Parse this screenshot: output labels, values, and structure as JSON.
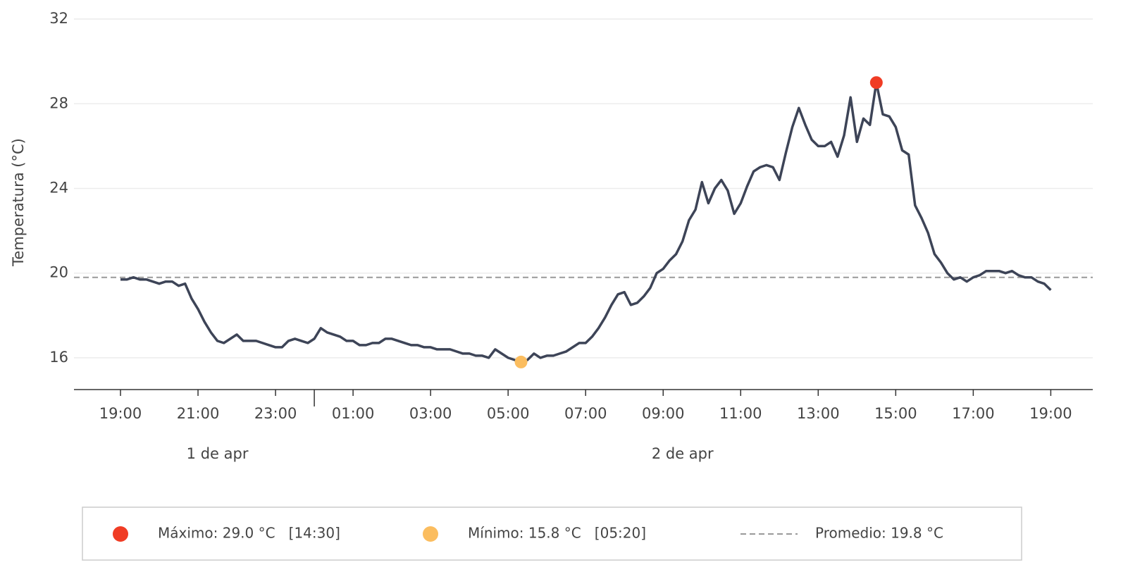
{
  "chart_data": {
    "type": "line",
    "y_label": "Temperatura (°C)",
    "x": [
      1140,
      1150,
      1160,
      1170,
      1180,
      1190,
      1200,
      1210,
      1220,
      1230,
      1240,
      1250,
      1260,
      1270,
      1280,
      1290,
      1300,
      1310,
      1320,
      1330,
      1340,
      1350,
      1360,
      1370,
      1380,
      1390,
      1400,
      1410,
      1420,
      1430,
      1440,
      1450,
      1460,
      1470,
      1480,
      1490,
      1500,
      1510,
      1520,
      1530,
      1540,
      1550,
      1560,
      1570,
      1580,
      1590,
      1600,
      1610,
      1620,
      1630,
      1640,
      1650,
      1660,
      1670,
      1680,
      1690,
      1700,
      1710,
      1720,
      1730,
      1740,
      1750,
      1760,
      1770,
      1780,
      1790,
      1800,
      1810,
      1820,
      1830,
      1840,
      1850,
      1860,
      1870,
      1880,
      1890,
      1900,
      1910,
      1920,
      1930,
      1940,
      1950,
      1960,
      1970,
      1980,
      1990,
      2000,
      2010,
      2020,
      2030,
      2040,
      2050,
      2060,
      2070,
      2080,
      2090,
      2100,
      2110,
      2120,
      2130,
      2140,
      2150,
      2160,
      2170,
      2180,
      2190,
      2200,
      2210,
      2220,
      2230,
      2240,
      2250,
      2260,
      2270,
      2280,
      2290,
      2300,
      2310,
      2320,
      2330,
      2340,
      2350,
      2360,
      2370,
      2380,
      2390,
      2400,
      2410,
      2420,
      2430,
      2440,
      2450,
      2460,
      2470,
      2480,
      2490,
      2500,
      2510,
      2520,
      2530,
      2540,
      2550,
      2560,
      2570,
      2580
    ],
    "series": [
      {
        "color": "#3d4457",
        "values": [
          19.7,
          19.7,
          19.8,
          19.7,
          19.7,
          19.6,
          19.5,
          19.6,
          19.6,
          19.4,
          19.5,
          18.8,
          18.3,
          17.7,
          17.2,
          16.8,
          16.7,
          16.9,
          17.1,
          16.8,
          16.8,
          16.8,
          16.7,
          16.6,
          16.5,
          16.5,
          16.8,
          16.9,
          16.8,
          16.7,
          16.9,
          17.4,
          17.2,
          17.1,
          17.0,
          16.8,
          16.8,
          16.6,
          16.6,
          16.7,
          16.7,
          16.9,
          16.9,
          16.8,
          16.7,
          16.6,
          16.6,
          16.5,
          16.5,
          16.4,
          16.4,
          16.4,
          16.3,
          16.2,
          16.2,
          16.1,
          16.1,
          16.0,
          16.4,
          16.2,
          16.0,
          15.9,
          15.8,
          15.9,
          16.2,
          16.0,
          16.1,
          16.1,
          16.2,
          16.3,
          16.5,
          16.7,
          16.7,
          17.0,
          17.4,
          17.9,
          18.5,
          19.0,
          19.1,
          18.5,
          18.6,
          18.9,
          19.3,
          20.0,
          20.2,
          20.6,
          20.9,
          21.5,
          22.5,
          23.0,
          24.3,
          23.3,
          24.0,
          24.4,
          23.9,
          22.8,
          23.3,
          24.1,
          24.8,
          25.0,
          25.1,
          25.0,
          24.4,
          25.7,
          26.9,
          27.8,
          27.0,
          26.3,
          26.0,
          26.0,
          26.2,
          25.5,
          26.5,
          28.3,
          26.2,
          27.3,
          27.0,
          29.0,
          27.5,
          27.4,
          26.9,
          25.8,
          25.6,
          23.2,
          22.6,
          21.9,
          20.9,
          20.5,
          20.0,
          19.7,
          19.8,
          19.6,
          19.8,
          19.9,
          20.1,
          20.1,
          20.1,
          20.0,
          20.1,
          19.9,
          19.8,
          19.8,
          19.6,
          19.5,
          19.2
        ]
      }
    ],
    "xlim": [
      1068,
      2645
    ],
    "xticks": [
      {
        "value": 1140,
        "label": "19:00"
      },
      {
        "value": 1260,
        "label": "21:00"
      },
      {
        "value": 1380,
        "label": "23:00"
      },
      {
        "value": 1500,
        "label": "01:00"
      },
      {
        "value": 1620,
        "label": "03:00"
      },
      {
        "value": 1740,
        "label": "05:00"
      },
      {
        "value": 1860,
        "label": "07:00"
      },
      {
        "value": 1980,
        "label": "09:00"
      },
      {
        "value": 2100,
        "label": "11:00"
      },
      {
        "value": 2220,
        "label": "13:00"
      },
      {
        "value": 2340,
        "label": "15:00"
      },
      {
        "value": 2460,
        "label": "17:00"
      },
      {
        "value": 2580,
        "label": "19:00"
      }
    ],
    "day_break": 1440,
    "day_labels": [
      "1 de apr",
      "2 de apr"
    ],
    "ylim": [
      14.5,
      32.9
    ],
    "yticks": [
      16,
      20,
      24,
      28,
      32
    ],
    "grid": true,
    "max": {
      "x": 2310,
      "value": 29.0,
      "color": "#f03c24",
      "label": "Máximo: 29.0 °C   [14:30]"
    },
    "min": {
      "x": 1760,
      "value": 15.8,
      "color": "#fbbd5f",
      "label": "Mínimo: 15.8 °C   [05:20]"
    },
    "mean": {
      "value": 19.8,
      "color": "#999999",
      "label": "Promedio: 19.8 °C"
    }
  }
}
